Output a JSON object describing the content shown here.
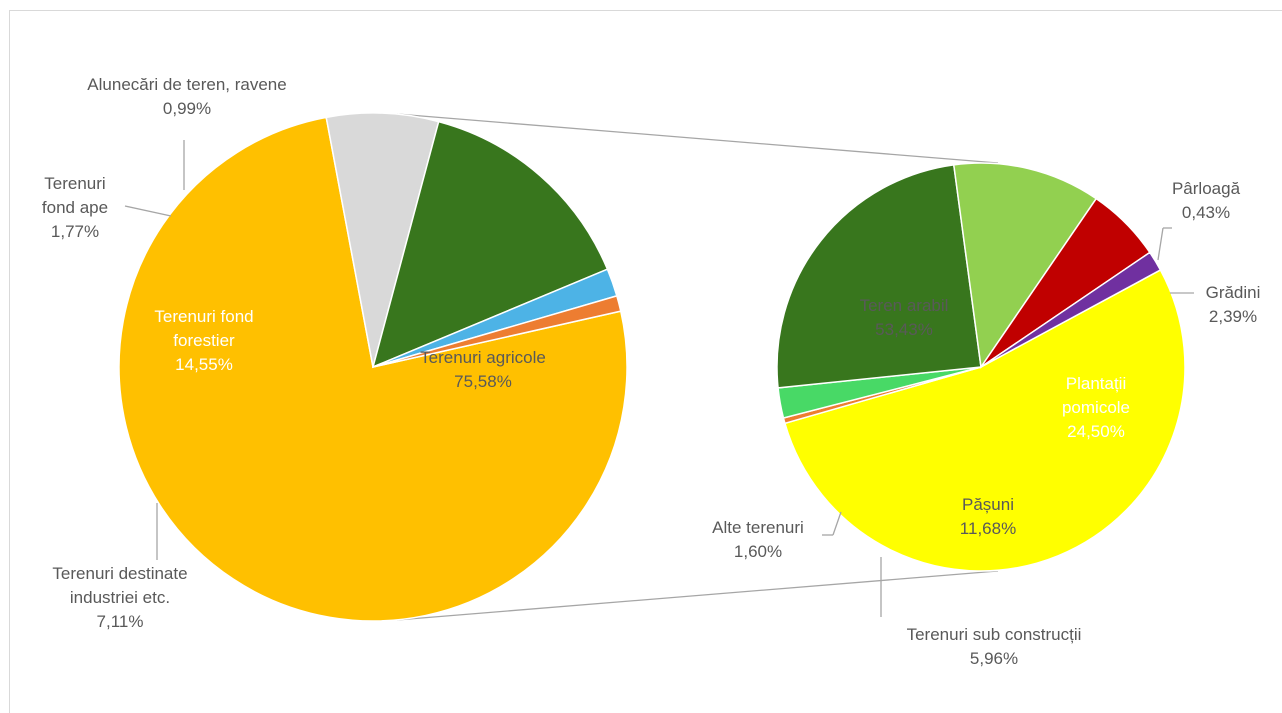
{
  "chart_data": {
    "type": "pie",
    "title": "",
    "main_pie": {
      "slices": [
        {
          "label": "Terenuri agricole",
          "value": 75.58,
          "label_text": "Terenuri agricole",
          "value_text": "75,58%",
          "color": "#FFC000"
        },
        {
          "label": "Terenuri destinate industriei etc.",
          "value": 7.11,
          "label_text": "Terenuri destinate industriei etc.",
          "value_text": "7,11%",
          "color": "#D9D9D9"
        },
        {
          "label": "Terenuri fond forestier",
          "value": 14.55,
          "label_text": "Terenuri fond forestier",
          "value_text": "14,55%",
          "color": "#38761D"
        },
        {
          "label": "Terenuri fond ape",
          "value": 1.77,
          "label_text": "Terenuri fond ape",
          "value_text": "1,77%",
          "color": "#4DB3E6"
        },
        {
          "label": "Alunecări de teren, ravene",
          "value": 0.99,
          "label_text": "Alunecări de teren, ravene",
          "value_text": "0,99%",
          "color": "#ED7D31"
        }
      ]
    },
    "detail_pie": {
      "parent": "Terenuri agricole",
      "slices": [
        {
          "label": "Teren arabil",
          "value": 53.43,
          "label_text": "Teren arabil",
          "value_text": "53,43%",
          "color": "#FFFF00"
        },
        {
          "label": "Pârloagă",
          "value": 0.43,
          "label_text": "Pârloagă",
          "value_text": "0,43%",
          "color": "#ED7D31"
        },
        {
          "label": "Grădini",
          "value": 2.39,
          "label_text": "Grădini",
          "value_text": "2,39%",
          "color": "#48D966"
        },
        {
          "label": "Plantații pomicole",
          "value": 24.5,
          "label_text": "Plantații pomicole",
          "value_text": "24,50%",
          "color": "#38761D"
        },
        {
          "label": "Pășuni",
          "value": 11.68,
          "label_text": "Pășuni",
          "value_text": "11,68%",
          "color": "#92D050"
        },
        {
          "label": "Terenuri sub construcții",
          "value": 5.96,
          "label_text": "Terenuri sub construcții",
          "value_text": "5,96%",
          "color": "#C00000"
        },
        {
          "label": "Alte terenuri",
          "value": 1.6,
          "label_text": "Alte terenuri",
          "value_text": "1,60%",
          "color": "#7030A0"
        }
      ]
    }
  }
}
